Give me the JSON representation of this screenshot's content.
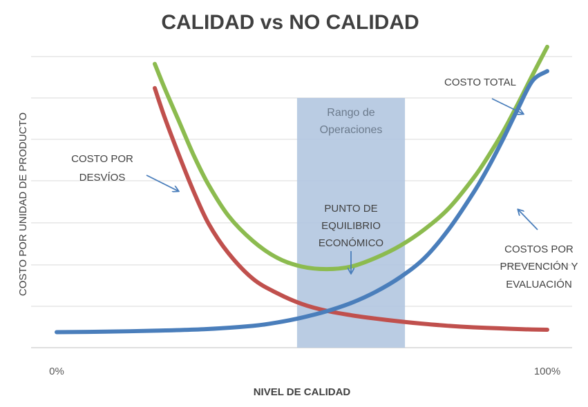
{
  "chart_data": {
    "type": "line",
    "title": "CALIDAD vs NO CALIDAD",
    "xlabel": "NIVEL DE CALIDAD",
    "ylabel": "COSTO POR UNIDAD DE PRODUCTO",
    "xlim": [
      0,
      100
    ],
    "ylim": [
      0,
      6
    ],
    "x_tick_labels": [
      "0%",
      "100%"
    ],
    "grid": true,
    "legend": "none",
    "series": [
      {
        "name": "COSTO TOTAL",
        "color": "#8cbb4f",
        "x": [
          20,
          22,
          25,
          28,
          31,
          35,
          40,
          45,
          50,
          55,
          60,
          65,
          70,
          75,
          80,
          85,
          88,
          91,
          94,
          97,
          100
        ],
        "y": [
          5.85,
          5.35,
          4.65,
          3.95,
          3.35,
          2.72,
          2.2,
          1.85,
          1.67,
          1.62,
          1.67,
          1.85,
          2.1,
          2.44,
          2.88,
          3.5,
          3.95,
          4.45,
          5.02,
          5.62,
          6.2
        ]
      },
      {
        "name": "COSTO POR DESVÍOS",
        "color": "#c0504d",
        "x": [
          20,
          22,
          25,
          28,
          31,
          35,
          40,
          45,
          50,
          55,
          60,
          65,
          70,
          75,
          80,
          85,
          90,
          95,
          100
        ],
        "y": [
          5.35,
          4.75,
          3.95,
          3.2,
          2.55,
          1.95,
          1.42,
          1.12,
          0.9,
          0.76,
          0.67,
          0.6,
          0.54,
          0.49,
          0.45,
          0.42,
          0.4,
          0.38,
          0.37
        ]
      },
      {
        "name": "COSTOS POR PREVENCIÓN Y EVALUACIÓN",
        "color": "#4a7ebb",
        "x": [
          0,
          10,
          20,
          30,
          40,
          45,
          50,
          55,
          60,
          65,
          70,
          75,
          80,
          85,
          88,
          91,
          94,
          97,
          100
        ],
        "y": [
          0.32,
          0.33,
          0.35,
          0.38,
          0.45,
          0.52,
          0.62,
          0.75,
          0.92,
          1.15,
          1.45,
          1.85,
          2.45,
          3.2,
          3.72,
          4.3,
          4.92,
          5.5,
          5.7
        ]
      }
    ],
    "band": {
      "label_line1": "Rango de",
      "label_line2": "Operaciones",
      "x_start": 49,
      "x_end": 71,
      "color": "#b3c7e0"
    },
    "annotations": {
      "costo_total": "COSTO TOTAL",
      "desvios_line1": "COSTO POR",
      "desvios_line2": "DESVÍOS",
      "prevencion_line1": "COSTOS POR",
      "prevencion_line2": "PREVENCIÓN Y",
      "prevencion_line3": "EVALUACIÓN",
      "equilibrio_line1": "PUNTO DE",
      "equilibrio_line2": "EQUILIBRIO",
      "equilibrio_line3": "ECONÓMICO"
    },
    "arrow_color": "#4a7ebb"
  }
}
